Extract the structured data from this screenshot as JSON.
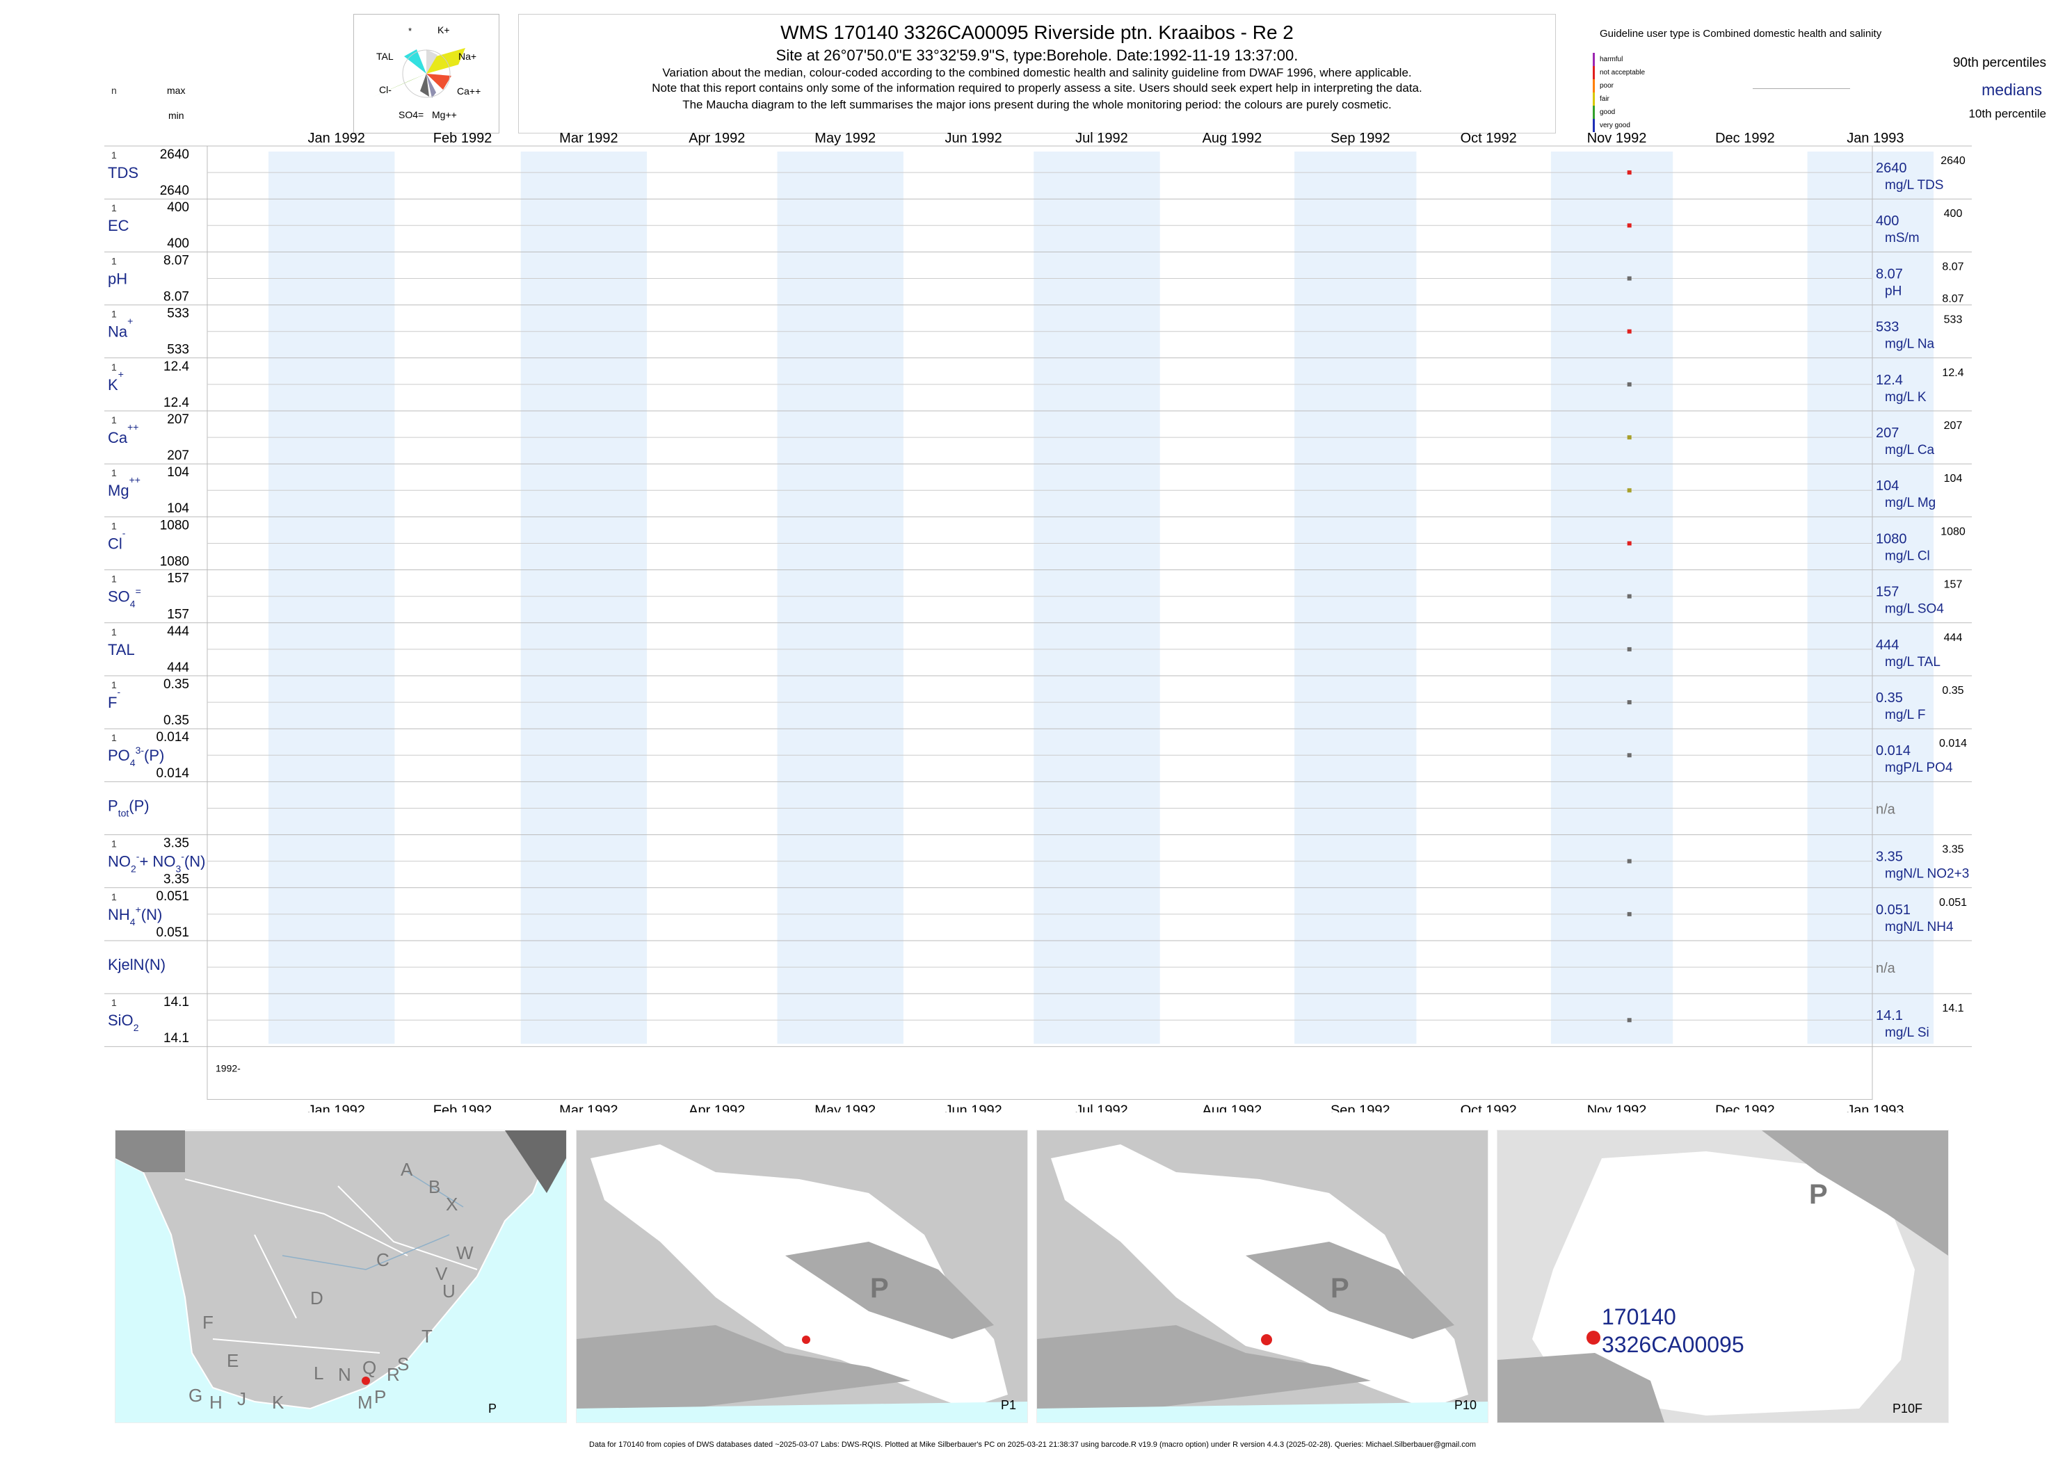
{
  "title": "WMS 170140 3326CA00095 Riverside ptn. Kraaibos - Re 2",
  "subtitle": "Site at 26°07'50.0\"E 33°32'59.9\"S, type:Borehole. Date:1992-11-19 13:37:00.",
  "note1": "Variation about the median,  colour-coded according to the combined domestic health and salinity guideline from DWAF 1996, where applicable.",
  "note2": "Note that this report contains only some of the information required to properly assess a site. Users should seek expert help in interpreting the data.",
  "note3": "The Maucha diagram to the left summarises the major ions present during the whole monitoring period: the colours are purely cosmetic.",
  "maucha": {
    "labels": [
      "*",
      "K+",
      "TAL",
      "Na+",
      "Cl-",
      "Ca++",
      "SO4=",
      "Mg++"
    ]
  },
  "legend": {
    "guideline": "Guideline user type is Combined domestic health and salinity",
    "p90": "90th percentiles",
    "medians": "medians",
    "p10": "10th percentile",
    "classes": [
      {
        "label": "harmful",
        "color": "#9c27b0"
      },
      {
        "label": "not acceptable",
        "color": "#e0201e"
      },
      {
        "label": "poor",
        "color": "#ff7f00"
      },
      {
        "label": "fair",
        "color": "#d8c800"
      },
      {
        "label": "good",
        "color": "#33a02c"
      },
      {
        "label": "very good",
        "color": "#1f2fb5"
      }
    ]
  },
  "left_header": {
    "n": "n",
    "max": "max",
    "min": "min"
  },
  "chart_data": {
    "type": "scatter",
    "x_range": [
      "1992-01-01",
      "1993-01-31"
    ],
    "month_ticks": [
      "Jan 1992",
      "Feb 1992",
      "Mar 1992",
      "Apr 1992",
      "May 1992",
      "Jun 1992",
      "Jul 1992",
      "Aug 1992",
      "Sep 1992",
      "Oct 1992",
      "Nov 1992",
      "Dec 1992",
      "Jan 1993"
    ],
    "sample_date": "1992-11-19",
    "year_label": "1992-",
    "rows": [
      {
        "label": "TDS",
        "n": "1",
        "max": "2640",
        "min": "2640",
        "median": "2640",
        "unit": "mg/L TDS",
        "p90": "2640",
        "p10": "",
        "value": 2640,
        "color": "#e0201e"
      },
      {
        "label": "EC",
        "n": "1",
        "max": "400",
        "min": "400",
        "median": "400",
        "unit": "mS/m",
        "p90": "400",
        "p10": "",
        "value": 400,
        "color": "#e0201e"
      },
      {
        "label": "pH",
        "n": "1",
        "max": "8.07",
        "min": "8.07",
        "median": "8.07",
        "unit": "pH",
        "p90": "8.07",
        "p10": "8.07",
        "value": 8.07,
        "color": "#6b6b6b"
      },
      {
        "label": "Na",
        "sup": "+",
        "n": "1",
        "max": "533",
        "min": "533",
        "median": "533",
        "unit": "mg/L Na",
        "p90": "533",
        "p10": "",
        "value": 533,
        "color": "#e0201e"
      },
      {
        "label": "K",
        "sup": "+",
        "n": "1",
        "max": "12.4",
        "min": "12.4",
        "median": "12.4",
        "unit": "mg/L K",
        "p90": "12.4",
        "p10": "",
        "value": 12.4,
        "color": "#6b6b6b"
      },
      {
        "label": "Ca",
        "sup": "++",
        "n": "1",
        "max": "207",
        "min": "207",
        "median": "207",
        "unit": "mg/L Ca",
        "p90": "207",
        "p10": "",
        "value": 207,
        "color": "#a8a02a"
      },
      {
        "label": "Mg",
        "sup": "++",
        "n": "1",
        "max": "104",
        "min": "104",
        "median": "104",
        "unit": "mg/L Mg",
        "p90": "104",
        "p10": "",
        "value": 104,
        "color": "#a8a02a"
      },
      {
        "label": "Cl",
        "sup": "-",
        "n": "1",
        "max": "1080",
        "min": "1080",
        "median": "1080",
        "unit": "mg/L Cl",
        "p90": "1080",
        "p10": "",
        "value": 1080,
        "color": "#e0201e"
      },
      {
        "label": "SO",
        "sub": "4",
        "sup": "=",
        "n": "1",
        "max": "157",
        "min": "157",
        "median": "157",
        "unit": "mg/L SO4",
        "p90": "157",
        "p10": "",
        "value": 157,
        "color": "#6b6b6b"
      },
      {
        "label": "TAL",
        "n": "1",
        "max": "444",
        "min": "444",
        "median": "444",
        "unit": "mg/L TAL",
        "p90": "444",
        "p10": "",
        "value": 444,
        "color": "#6b6b6b"
      },
      {
        "label": "F",
        "sup": "-",
        "n": "1",
        "max": "0.35",
        "min": "0.35",
        "median": "0.35",
        "unit": "mg/L F",
        "p90": "0.35",
        "p10": "",
        "value": 0.35,
        "color": "#6b6b6b"
      },
      {
        "label": "PO",
        "sub": "4",
        "sup": "3-",
        "suffix": "(P)",
        "n": "1",
        "max": "0.014",
        "min": "0.014",
        "median": "0.014",
        "unit": "mgP/L PO4",
        "p90": "0.014",
        "p10": "",
        "value": 0.014,
        "color": "#6b6b6b"
      },
      {
        "label": "P",
        "sub": "tot",
        "suffix": "(P)",
        "n": "",
        "max": "",
        "min": "",
        "median": "n/a",
        "unit": "",
        "p90": "",
        "p10": "",
        "value": null,
        "color": "#6b6b6b"
      },
      {
        "label": "NO",
        "sub": "2",
        "sup": "-",
        "suffix": "+ NO",
        "sub2": "3",
        "sup2": "-",
        "suffix2": "(N)",
        "n": "1",
        "max": "3.35",
        "min": "3.35",
        "median": "3.35",
        "unit": "mgN/L NO2+3",
        "p90": "3.35",
        "p10": "",
        "value": 3.35,
        "color": "#6b6b6b"
      },
      {
        "label": "NH",
        "sub": "4",
        "sup": "+",
        "suffix": "(N)",
        "n": "1",
        "max": "0.051",
        "min": "0.051",
        "median": "0.051",
        "unit": "mgN/L NH4",
        "p90": "0.051",
        "p10": "",
        "value": 0.051,
        "color": "#6b6b6b"
      },
      {
        "label": "KjelN(N)",
        "n": "",
        "max": "",
        "min": "",
        "median": "n/a",
        "unit": "",
        "p90": "",
        "p10": "",
        "value": null,
        "color": "#6b6b6b"
      },
      {
        "label": "SiO",
        "sub": "2",
        "n": "1",
        "max": "14.1",
        "min": "14.1",
        "median": "14.1",
        "unit": "mg/L Si",
        "p90": "14.1",
        "p10": "",
        "value": 14.1,
        "color": "#6b6b6b"
      }
    ]
  },
  "maps": {
    "map1": {
      "letters": [
        "A",
        "B",
        "X",
        "C",
        "W",
        "V",
        "U",
        "D",
        "T",
        "F",
        "E",
        "S",
        "Q",
        "R",
        "L",
        "N",
        "G",
        "H",
        "J",
        "K",
        "M",
        "P"
      ],
      "caption": "P"
    },
    "map2": {
      "letter": "P",
      "caption": "P1"
    },
    "map3": {
      "letter": "P",
      "caption": "P10"
    },
    "map4": {
      "letter": "P",
      "site_id": "170140",
      "site_code": "3326CA00095",
      "caption": "P10F"
    }
  },
  "footer": "Data for 170140 from copies of DWS databases dated ~2025-03-07 Labs: DWS-RQIS. Plotted at Mike Silberbauer's PC on 2025-03-21 21:38:37 using barcode.R v19.9 (macro option) under R version 4.4.3 (2025-02-28). Queries: Michael.Silberbauer@gmail.com",
  "colors": {
    "band": "#e8f2fc",
    "text_blue": "#1a2a8a",
    "site_dot": "#e0201e",
    "sea": "#d6fbfd",
    "land": "#c8c8c8",
    "dark_land": "#8a8a8a"
  }
}
